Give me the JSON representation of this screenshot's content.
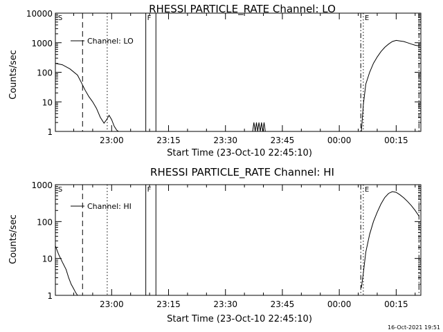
{
  "footer": {
    "timestamp": "16-Oct-2021 19:51"
  },
  "chart_data": [
    {
      "type": "line",
      "title": "RHESSI PARTICLE_RATE Channel: LO",
      "xlabel": "Start Time (23-Oct-10 22:45:10)",
      "ylabel": "Counts/sec",
      "yscale": "log",
      "ylim": [
        1,
        10000
      ],
      "xlim": [
        "22:45:10",
        "00:21:30"
      ],
      "x_ticks": [
        "23:00",
        "23:15",
        "23:30",
        "23:45",
        "00:00",
        "00:15"
      ],
      "y_ticks": [
        "1",
        "10",
        "100",
        "1000",
        "10000"
      ],
      "legend": {
        "label": "Channel: LO",
        "position": "top-left"
      },
      "series": [
        {
          "name": "Channel: LO",
          "segments": [
            {
              "x": [
                "22:45:10",
                "22:47:00",
                "22:49:00",
                "22:51:00",
                "22:52:00",
                "22:53:00",
                "22:54:00",
                "22:55:00",
                "22:56:00",
                "22:57:00",
                "22:58:00",
                "22:58:40",
                "22:59:20",
                "23:00:00",
                "23:00:40",
                "23:01:20",
                "23:01:50"
              ],
              "y": [
                200,
                180,
                130,
                80,
                45,
                25,
                15,
                10,
                6,
                3,
                1.9,
                2.5,
                3.5,
                2.5,
                1.5,
                1.1,
                1
              ]
            },
            {
              "x": [
                "23:37:10",
                "23:37:30",
                "23:37:50",
                "23:38:10",
                "23:38:30",
                "23:38:50",
                "23:39:10",
                "23:39:30",
                "23:39:50",
                "23:40:10",
                "23:40:30"
              ],
              "y": [
                1,
                2,
                1,
                2,
                1,
                2,
                1,
                2,
                1,
                2,
                1
              ]
            },
            {
              "x": [
                "00:05:50",
                "00:06:20",
                "00:07:00",
                "00:08:00",
                "00:09:00",
                "00:10:00",
                "00:11:00",
                "00:12:00",
                "00:13:00",
                "00:14:00",
                "00:15:00",
                "00:16:00",
                "00:17:00",
                "00:18:00",
                "00:19:00",
                "00:20:00",
                "00:21:00"
              ],
              "y": [
                1,
                8,
                40,
                100,
                200,
                330,
                500,
                700,
                900,
                1100,
                1200,
                1150,
                1100,
                1000,
                900,
                820,
                780
              ]
            }
          ]
        }
      ],
      "markers": [
        {
          "label": "S",
          "time": "22:45:30",
          "style": "edge"
        },
        {
          "time": "22:52:20",
          "style": "dashed"
        },
        {
          "time": "22:58:50",
          "style": "dotted"
        },
        {
          "label": "F",
          "time": "23:09:00",
          "style": "solid"
        },
        {
          "time": "23:11:40",
          "style": "solid"
        },
        {
          "time": "00:05:40",
          "style": "dashdot"
        },
        {
          "label": "E",
          "time": "00:06:20",
          "style": "dotted"
        },
        {
          "time": "00:21:00",
          "style": "dashdot"
        }
      ]
    },
    {
      "type": "line",
      "title": "RHESSI PARTICLE_RATE Channel: HI",
      "xlabel": "Start Time (23-Oct-10 22:45:10)",
      "ylabel": "Counts/sec",
      "yscale": "log",
      "ylim": [
        1,
        1000
      ],
      "xlim": [
        "22:45:10",
        "00:21:30"
      ],
      "x_ticks": [
        "23:00",
        "23:15",
        "23:30",
        "23:45",
        "00:00",
        "00:15"
      ],
      "y_ticks": [
        "1",
        "10",
        "100",
        "1000"
      ],
      "legend": {
        "label": "Channel: HI",
        "position": "top-left"
      },
      "series": [
        {
          "name": "Channel: HI",
          "segments": [
            {
              "x": [
                "22:45:10",
                "22:46:00",
                "22:47:00",
                "22:48:00",
                "22:48:40",
                "22:49:20",
                "22:50:00",
                "22:50:30",
                "22:51:00"
              ],
              "y": [
                22,
                13,
                8,
                5,
                3,
                2,
                1.5,
                1.2,
                1
              ]
            },
            {
              "x": [
                "00:05:50",
                "00:06:20",
                "00:07:00",
                "00:08:00",
                "00:09:00",
                "00:10:00",
                "00:11:00",
                "00:12:00",
                "00:13:00",
                "00:14:00",
                "00:15:00",
                "00:16:00",
                "00:17:00",
                "00:18:00",
                "00:19:00",
                "00:20:00",
                "00:21:00"
              ],
              "y": [
                1.6,
                4,
                15,
                45,
                100,
                180,
                300,
                450,
                580,
                650,
                620,
                530,
                440,
                350,
                270,
                200,
                140
              ]
            }
          ]
        }
      ],
      "markers": [
        {
          "label": "S",
          "time": "22:45:30",
          "style": "edge"
        },
        {
          "time": "22:52:20",
          "style": "dashed"
        },
        {
          "time": "22:58:50",
          "style": "dotted"
        },
        {
          "label": "F",
          "time": "23:09:00",
          "style": "solid"
        },
        {
          "time": "23:11:40",
          "style": "solid"
        },
        {
          "time": "00:05:40",
          "style": "dashdot"
        },
        {
          "label": "E",
          "time": "00:06:20",
          "style": "dotted"
        },
        {
          "time": "00:21:00",
          "style": "dashdot"
        }
      ]
    }
  ]
}
